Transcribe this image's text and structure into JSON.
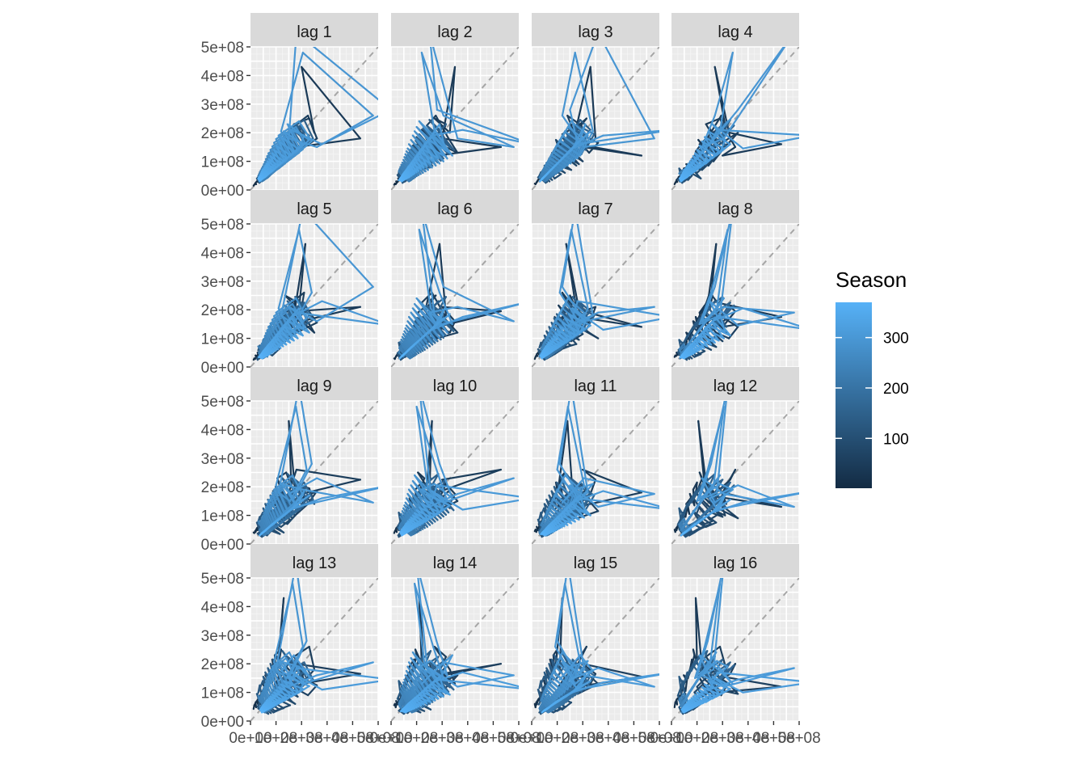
{
  "chart_data": {
    "type": "line",
    "title": "",
    "xlabel": "",
    "ylabel": "",
    "panels": [
      "lag 1",
      "lag 2",
      "lag 3",
      "lag 4",
      "lag 5",
      "lag 6",
      "lag 7",
      "lag 8",
      "lag 9",
      "lag 10",
      "lag 11",
      "lag 12",
      "lag 13",
      "lag 14",
      "lag 15",
      "lag 16"
    ],
    "lags": [
      1,
      2,
      3,
      4,
      5,
      6,
      7,
      8,
      9,
      10,
      11,
      12,
      13,
      14,
      15,
      16
    ],
    "y_ticks": [
      "0e+00",
      "1e+08",
      "2e+08",
      "3e+08",
      "4e+08",
      "5e+08"
    ],
    "x_ticks": [
      "0e+00",
      "1e+08",
      "2e+08",
      "3e+08",
      "4e+08",
      "5e+08"
    ],
    "xlim": [
      0,
      500000000
    ],
    "ylim": [
      0,
      500000000
    ],
    "grid": true,
    "reference_line": "y = x (dashed grey)",
    "color_scale": {
      "name": "Season",
      "low_color": "#132B43",
      "high_color": "#56B1F7",
      "range": [
        1,
        370
      ],
      "ticks": [
        "100",
        "200",
        "300"
      ],
      "tick_values": [
        100,
        200,
        300
      ]
    },
    "series_description": "Lag plots of a weekly series: each panel plots value(t) against value(t - lag), coloured by Season index.",
    "values": [
      12000000,
      15000000,
      18000000,
      22000000,
      20000000,
      25000000,
      30000000,
      28000000,
      35000000,
      40000000,
      38000000,
      45000000,
      50000000,
      42000000,
      55000000,
      60000000,
      48000000,
      65000000,
      70000000,
      58000000,
      75000000,
      80000000,
      72000000,
      90000000,
      85000000,
      100000000,
      95000000,
      120000000,
      110000000,
      130000000,
      105000000,
      140000000,
      160000000,
      150000000,
      175000000,
      135000000,
      190000000,
      215000000,
      170000000,
      230000000,
      250000000,
      200000000,
      430000000,
      180000000,
      150000000,
      120000000,
      160000000,
      210000000,
      195000000,
      140000000,
      175000000,
      225000000,
      260000000,
      180000000,
      130000000,
      165000000,
      200000000,
      155000000,
      120000000,
      100000000,
      140000000,
      185000000,
      150000000,
      115000000,
      90000000,
      125000000,
      160000000,
      130000000,
      95000000,
      110000000,
      145000000,
      175000000,
      135000000,
      105000000,
      85000000,
      120000000,
      155000000,
      110000000,
      80000000,
      70000000,
      100000000,
      130000000,
      95000000,
      75000000,
      60000000,
      85000000,
      115000000,
      90000000,
      70000000,
      55000000,
      40000000,
      65000000,
      80000000,
      60000000,
      45000000,
      35000000,
      50000000,
      70000000,
      55000000,
      40000000,
      30000000,
      45000000,
      60000000,
      50000000,
      38000000,
      28000000,
      42000000,
      55000000,
      45000000,
      35000000,
      25000000,
      40000000,
      52000000,
      44000000,
      36000000,
      30000000,
      48000000,
      62000000,
      50000000,
      75000000,
      58000000,
      85000000,
      68000000,
      95000000,
      78000000,
      110000000,
      88000000,
      125000000,
      98000000,
      140000000,
      115000000,
      155000000,
      125000000,
      170000000,
      135000000,
      185000000,
      145000000,
      200000000,
      160000000,
      215000000,
      175000000,
      230000000,
      190000000,
      150000000,
      210000000,
      245000000,
      180000000,
      140000000,
      195000000,
      225000000,
      165000000,
      125000000,
      180000000,
      215000000,
      155000000,
      118000000,
      170000000,
      205000000,
      145000000,
      110000000,
      160000000,
      195000000,
      138000000,
      102000000,
      150000000,
      182000000,
      130000000,
      96000000,
      142000000,
      172000000,
      122000000,
      90000000,
      135000000,
      162000000,
      115000000,
      84000000,
      126000000,
      152000000,
      108000000,
      78000000,
      118000000,
      142000000,
      100000000,
      72000000,
      110000000,
      132000000,
      94000000,
      66000000,
      102000000,
      124000000,
      88000000,
      60000000,
      95000000,
      116000000,
      82000000,
      56000000,
      88000000,
      108000000,
      76000000,
      52000000,
      82000000,
      100000000,
      70000000,
      48000000,
      76000000,
      94000000,
      64000000,
      44000000,
      70000000,
      88000000,
      60000000,
      40000000,
      65000000,
      82000000,
      55000000,
      37000000,
      60000000,
      78000000,
      52000000,
      34000000,
      56000000,
      74000000,
      48000000,
      32000000,
      52000000,
      70000000,
      45000000,
      30000000,
      48000000,
      66000000,
      42000000,
      58000000,
      72000000,
      50000000,
      36000000,
      62000000,
      80000000,
      55000000,
      40000000,
      68000000,
      88000000,
      60000000,
      44000000,
      75000000,
      96000000,
      66000000,
      48000000,
      82000000,
      105000000,
      72000000,
      52000000,
      90000000,
      115000000,
      78000000,
      56000000,
      98000000,
      125000000,
      85000000,
      60000000,
      108000000,
      135000000,
      92000000,
      65000000,
      118000000,
      145000000,
      100000000,
      70000000,
      128000000,
      160000000,
      110000000,
      78000000,
      140000000,
      175000000,
      120000000,
      85000000,
      152000000,
      190000000,
      130000000,
      92000000,
      165000000,
      205000000,
      142000000,
      100000000,
      178000000,
      220000000,
      155000000,
      110000000,
      190000000,
      240000000,
      170000000,
      120000000,
      205000000,
      480000000,
      260000000,
      150000000,
      180000000,
      550000000,
      280000000,
      160000000,
      210000000,
      190000000,
      145000000,
      230000000,
      175000000,
      130000000,
      205000000,
      160000000,
      120000000,
      185000000,
      145000000,
      110000000,
      170000000,
      135000000,
      100000000,
      155000000,
      122000000,
      92000000,
      140000000,
      112000000,
      85000000,
      128000000,
      102000000,
      78000000,
      118000000,
      94000000,
      72000000,
      108000000,
      86000000,
      66000000,
      100000000,
      80000000,
      62000000,
      92000000,
      74000000,
      58000000,
      86000000,
      68000000,
      54000000,
      80000000,
      64000000,
      50000000,
      74000000,
      60000000,
      47000000,
      70000000,
      56000000,
      44000000,
      65000000,
      52000000,
      42000000,
      60000000,
      48000000,
      40000000,
      56000000,
      45000000,
      38000000,
      52000000,
      42000000,
      36000000,
      48000000,
      40000000,
      34000000,
      45000000,
      38000000,
      32000000,
      42000000,
      36000000,
      30000000,
      40000000,
      34000000
    ]
  }
}
